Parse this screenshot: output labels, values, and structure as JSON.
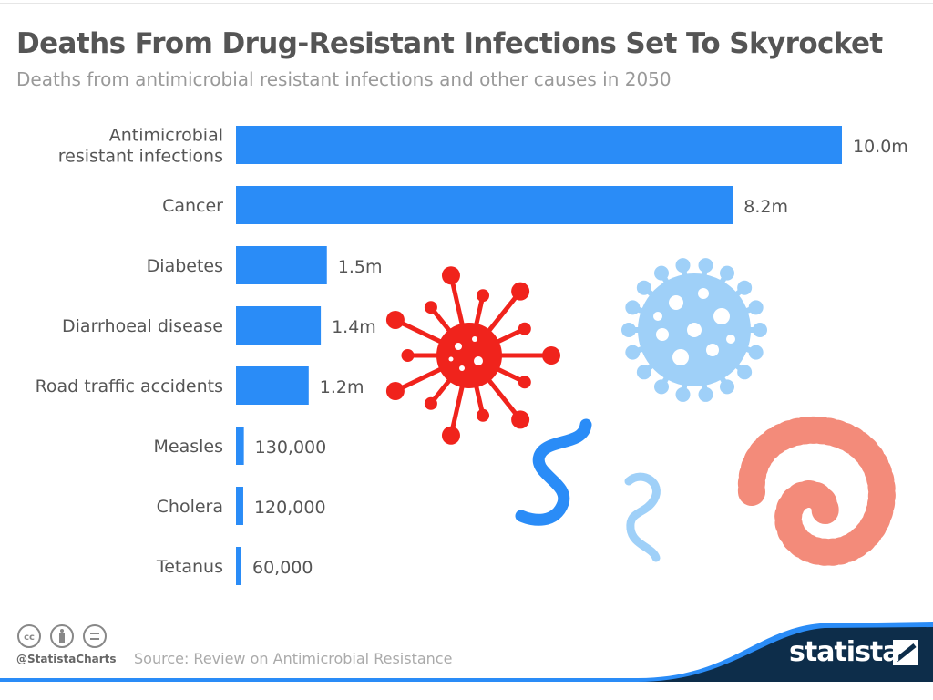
{
  "chart_data": {
    "type": "bar",
    "orientation": "horizontal",
    "title": "Deaths From Drug-Resistant Infections Set To Skyrocket",
    "subtitle": "Deaths from antimicrobial resistant infections and other causes in 2050",
    "categories": [
      "Antimicrobial resistant infections",
      "Cancer",
      "Diabetes",
      "Diarrhoeal disease",
      "Road traffic accidents",
      "Measles",
      "Cholera",
      "Tetanus"
    ],
    "category_lines": [
      [
        "Antimicrobial",
        "resistant infections"
      ],
      [
        "Cancer"
      ],
      [
        "Diabetes"
      ],
      [
        "Diarrhoeal disease"
      ],
      [
        "Road traffic accidents"
      ],
      [
        "Measles"
      ],
      [
        "Cholera"
      ],
      [
        "Tetanus"
      ]
    ],
    "values": [
      10000000,
      8200000,
      1500000,
      1400000,
      1200000,
      130000,
      120000,
      60000
    ],
    "data_labels": [
      "10.0m",
      "8.2m",
      "1.5m",
      "1.4m",
      "1.2m",
      "130,000",
      "120,000",
      "60,000"
    ],
    "xlim": [
      0,
      10000000
    ],
    "grid": false,
    "bar_color": "#2a8cf7"
  },
  "footer": {
    "handle": "@StatistaCharts",
    "source": "Source: Review on Antimicrobial Resistance",
    "brand": "statista",
    "license_icons": [
      "cc-icon",
      "attribution-icon",
      "no-derivatives-icon"
    ],
    "brand_color": "#0d2d4a",
    "accent_color": "#2a8cf7"
  },
  "illustrations": [
    "red-virus-icon",
    "light-blue-virus-icon",
    "blue-bacterium-icon",
    "light-blue-bacterium-icon",
    "salmon-centipede-microbe-icon"
  ]
}
